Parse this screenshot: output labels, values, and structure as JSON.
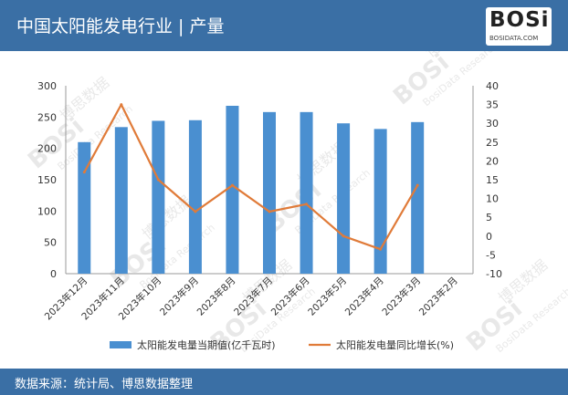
{
  "header": {
    "title": "中国太阳能发电行业 | 产量"
  },
  "logo": {
    "text": "BOSi",
    "sub": "BOSIDATA.COM"
  },
  "footer": {
    "source": "数据来源：统计局、博思数据整理"
  },
  "watermark": {
    "brand": "BOSi",
    "cn": "博思数据",
    "en": "BosiData Research",
    "url": "BOSIDATA.COM"
  },
  "colors": {
    "header_bg": "#3a6fa5",
    "bar": "#4a8fd0",
    "line": "#e07b39"
  },
  "chart_data": {
    "type": "bar+line",
    "title": "",
    "categories": [
      "2023年12月",
      "2023年11月",
      "2023年10月",
      "2023年9月",
      "2023年8月",
      "2023年7月",
      "2023年6月",
      "2023年5月",
      "2023年4月",
      "2023年3月",
      "2023年2月"
    ],
    "series": [
      {
        "name": "太阳能发电量当期值(亿千瓦时)",
        "type": "bar",
        "axis": "left",
        "values": [
          210,
          234,
          244,
          245,
          268,
          258,
          258,
          240,
          231,
          242,
          null
        ]
      },
      {
        "name": "太阳能发电量同比增长(%)",
        "type": "line",
        "axis": "right",
        "values": [
          17,
          35,
          15,
          6.5,
          13.5,
          6.5,
          8.5,
          0,
          -3.5,
          13.5,
          null
        ]
      }
    ],
    "y_left": {
      "min": 0,
      "max": 300,
      "ticks": [
        0,
        50,
        100,
        150,
        200,
        250,
        300
      ]
    },
    "y_right": {
      "min": -10,
      "max": 40,
      "ticks": [
        -10,
        -5,
        0,
        5,
        10,
        15,
        20,
        25,
        30,
        35,
        40
      ]
    },
    "grid": false,
    "legend_position": "bottom"
  }
}
